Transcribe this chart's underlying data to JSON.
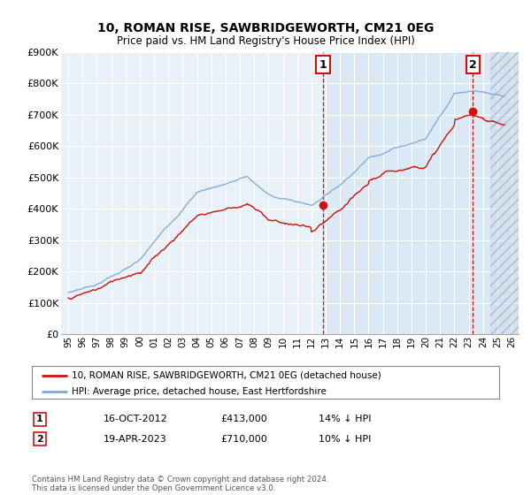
{
  "title": "10, ROMAN RISE, SAWBRIDGEWORTH, CM21 0EG",
  "subtitle": "Price paid vs. HM Land Registry's House Price Index (HPI)",
  "legend_line1": "10, ROMAN RISE, SAWBRIDGEWORTH, CM21 0EG (detached house)",
  "legend_line2": "HPI: Average price, detached house, East Hertfordshire",
  "annotation1_date": "16-OCT-2012",
  "annotation1_price": "£413,000",
  "annotation1_hpi": "14% ↓ HPI",
  "annotation1_year": 2012.8,
  "annotation1_value": 413000,
  "annotation2_date": "19-APR-2023",
  "annotation2_price": "£710,000",
  "annotation2_hpi": "10% ↓ HPI",
  "annotation2_year": 2023.3,
  "annotation2_value": 710000,
  "footer": "Contains HM Land Registry data © Crown copyright and database right 2024.\nThis data is licensed under the Open Government Licence v3.0.",
  "hpi_color": "#7aa8d4",
  "price_color": "#cc1111",
  "background_chart": "#e8f0f8",
  "background_highlight": "#d8e8f4",
  "grid_color": "#ffffff",
  "ylim": [
    0,
    900000
  ],
  "xlim_start": 1994.5,
  "xlim_end": 2026.5,
  "yticks": [
    0,
    100000,
    200000,
    300000,
    400000,
    500000,
    600000,
    700000,
    800000,
    900000
  ],
  "ytick_labels": [
    "£0",
    "£100K",
    "£200K",
    "£300K",
    "£400K",
    "£500K",
    "£600K",
    "£700K",
    "£800K",
    "£900K"
  ],
  "xticks": [
    1995,
    1996,
    1997,
    1998,
    1999,
    2000,
    2001,
    2002,
    2003,
    2004,
    2005,
    2006,
    2007,
    2008,
    2009,
    2010,
    2011,
    2012,
    2013,
    2014,
    2015,
    2016,
    2017,
    2018,
    2019,
    2020,
    2021,
    2022,
    2023,
    2024,
    2025,
    2026
  ]
}
